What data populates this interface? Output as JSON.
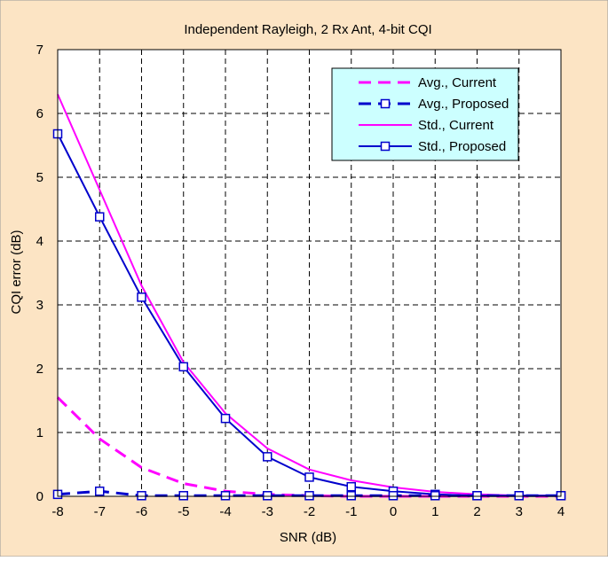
{
  "chart_data": {
    "type": "line",
    "title": "Independent Rayleigh, 2 Rx Ant, 4-bit CQI",
    "xlabel": "SNR (dB)",
    "ylabel": "CQI error (dB)",
    "xlim": [
      -8,
      4
    ],
    "ylim": [
      0,
      7
    ],
    "x_ticks": [
      -8,
      -7,
      -6,
      -5,
      -4,
      -3,
      -2,
      -1,
      0,
      1,
      2,
      3,
      4
    ],
    "y_ticks": [
      0,
      1,
      2,
      3,
      4,
      5,
      6,
      7
    ],
    "grid": true,
    "legend_position": "top-right",
    "x": [
      -8,
      -7,
      -6,
      -5,
      -4,
      -3,
      -2,
      -1,
      0,
      1,
      2,
      3,
      4
    ],
    "series": [
      {
        "name": "Avg., Current",
        "color": "#FF00FF",
        "style": "dashed",
        "marker": "none",
        "values": [
          1.55,
          0.9,
          0.45,
          0.2,
          0.08,
          0.03,
          0.01,
          0.0,
          0.0,
          0.0,
          0.0,
          0.0,
          0.0
        ]
      },
      {
        "name": "Avg., Proposed",
        "color": "#0000CC",
        "style": "dashed",
        "marker": "square",
        "values": [
          0.03,
          0.08,
          0.01,
          0.01,
          0.01,
          0.01,
          0.01,
          0.01,
          0.01,
          0.01,
          0.01,
          0.01,
          0.01
        ]
      },
      {
        "name": "Std., Current",
        "color": "#FF00FF",
        "style": "solid",
        "marker": "none",
        "values": [
          6.3,
          4.8,
          3.3,
          2.1,
          1.3,
          0.75,
          0.42,
          0.25,
          0.14,
          0.07,
          0.03,
          0.01,
          0.01
        ]
      },
      {
        "name": "Std., Proposed",
        "color": "#0000CC",
        "style": "solid",
        "marker": "square",
        "values": [
          5.68,
          4.38,
          3.12,
          2.03,
          1.22,
          0.62,
          0.3,
          0.15,
          0.08,
          0.03,
          0.01,
          0.01,
          0.01
        ]
      }
    ]
  },
  "colors": {
    "background": "#FCE4C4",
    "plot_area": "#FFFFFF",
    "legend_background": "#CCFFFF",
    "grid": "#000000"
  }
}
